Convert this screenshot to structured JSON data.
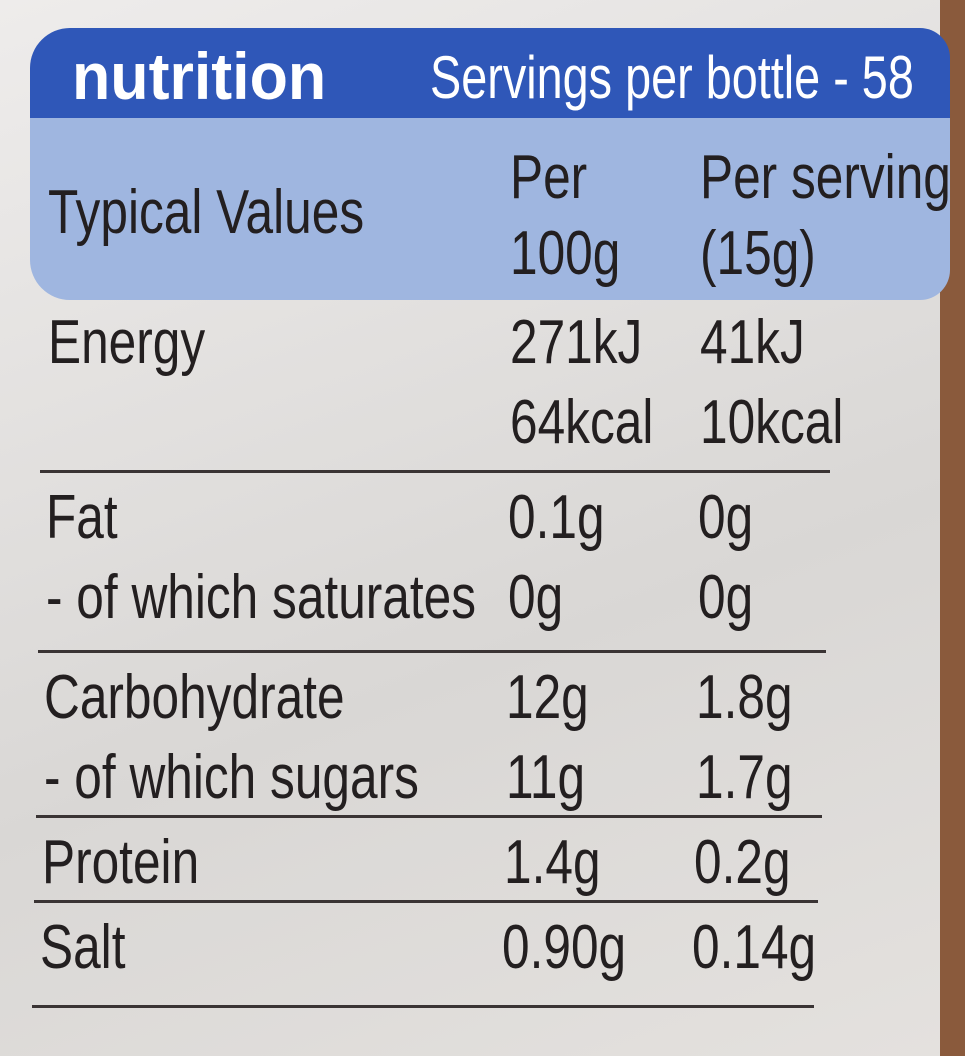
{
  "header": {
    "title": "nutrition",
    "servings": "Servings per bottle - 58"
  },
  "table": {
    "columns": [
      [
        "Typical Values"
      ],
      [
        "Per",
        "100g"
      ],
      [
        "Per serving",
        "(15g)"
      ]
    ],
    "rows": [
      {
        "label": [
          "Energy"
        ],
        "per100g": [
          "271kJ",
          "64kcal"
        ],
        "perServing": [
          "41kJ",
          "10kcal"
        ]
      },
      {
        "label": [
          "Fat",
          "- of which saturates"
        ],
        "per100g": [
          "0.1g",
          "0g"
        ],
        "perServing": [
          "0g",
          "0g"
        ]
      },
      {
        "label": [
          "Carbohydrate",
          "- of which sugars"
        ],
        "per100g": [
          "12g",
          "11g"
        ],
        "perServing": [
          "1.8g",
          "1.7g"
        ]
      },
      {
        "label": [
          "Protein"
        ],
        "per100g": [
          "1.4g"
        ],
        "perServing": [
          "0.2g"
        ]
      },
      {
        "label": [
          "Salt"
        ],
        "per100g": [
          "0.90g"
        ],
        "perServing": [
          "0.14g"
        ]
      }
    ]
  }
}
